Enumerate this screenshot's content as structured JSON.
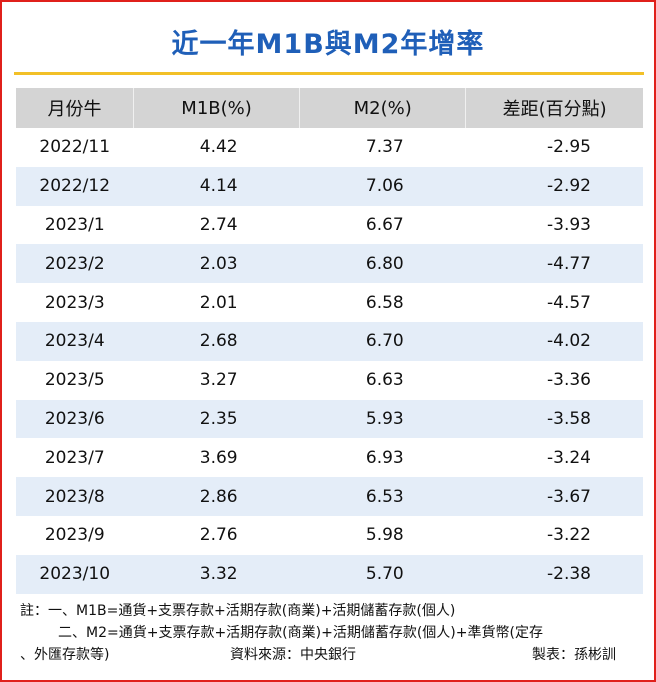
{
  "header": {
    "title": "近一年M1B與M2年增率"
  },
  "table": {
    "headers": [
      "月份牛",
      "M1B(%)",
      "M2(%)",
      "差距(百分點)"
    ],
    "rows": [
      [
        "2022/11",
        "4.42",
        "7.37",
        "-2.95"
      ],
      [
        "2022/12",
        "4.14",
        "7.06",
        "-2.92"
      ],
      [
        "2023/1",
        "2.74",
        "6.67",
        "-3.93"
      ],
      [
        "2023/2",
        "2.03",
        "6.80",
        "-4.77"
      ],
      [
        "2023/3",
        "2.01",
        "6.58",
        "-4.57"
      ],
      [
        "2023/4",
        "2.68",
        "6.70",
        "-4.02"
      ],
      [
        "2023/5",
        "3.27",
        "6.63",
        "-3.36"
      ],
      [
        "2023/6",
        "2.35",
        "5.93",
        "-3.58"
      ],
      [
        "2023/7",
        "3.69",
        "6.93",
        "-3.24"
      ],
      [
        "2023/8",
        "2.86",
        "6.53",
        "-3.67"
      ],
      [
        "2023/9",
        "2.76",
        "5.98",
        "-3.22"
      ],
      [
        "2023/10",
        "3.32",
        "5.70",
        "-2.38"
      ]
    ]
  },
  "notes": [
    "註：一、M1B=通貨+支票存款+活期存款(商業)+活期儲蓄存款(個人)",
    "二、M2=通貨+支票存款+活期存款(商業)+活期儲蓄存款(個人)+準貨幣(定存",
    "、外匯存款等)"
  ],
  "footer": {
    "source": "資料來源：中央銀行",
    "author": "製表：孫彬訓"
  }
}
